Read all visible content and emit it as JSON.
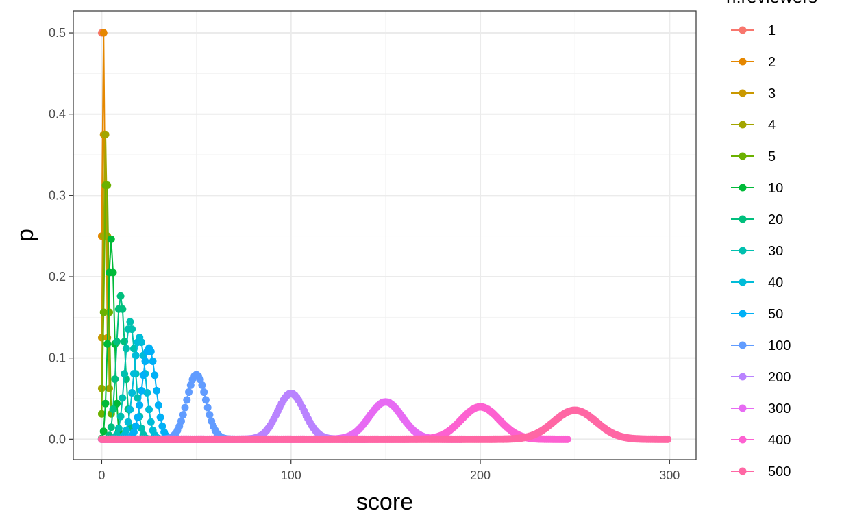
{
  "chart_data": {
    "type": "line",
    "title": "",
    "xlabel": "score",
    "ylabel": "p",
    "xlim": [
      -15,
      314
    ],
    "ylim": [
      -0.025,
      0.527
    ],
    "x_ticks": [
      0,
      100,
      200,
      300
    ],
    "x_tick_labels": [
      "0",
      "100",
      "200",
      "300"
    ],
    "y_ticks": [
      0.0,
      0.1,
      0.2,
      0.3,
      0.4,
      0.5
    ],
    "y_tick_labels": [
      "0.0",
      "0.1",
      "0.2",
      "0.3",
      "0.4",
      "0.5"
    ],
    "grid": true,
    "legend_position": "right",
    "legend_title": "n.reviewers",
    "series": [
      {
        "name": "1",
        "color": "#F8766D",
        "n": 1,
        "cap": 1,
        "label_x": 1
      },
      {
        "name": "2",
        "color": "#E58700",
        "n": 2,
        "cap": 2,
        "label_x": 2
      },
      {
        "name": "3",
        "color": "#C99800",
        "n": 3,
        "cap": 3,
        "label_x": 3
      },
      {
        "name": "4",
        "color": "#A3A500",
        "n": 4,
        "cap": 4,
        "label_x": 4
      },
      {
        "name": "5",
        "color": "#6BB100",
        "n": 5,
        "cap": 5,
        "label_x": 5
      },
      {
        "name": "10",
        "color": "#00BA38",
        "n": 10,
        "cap": 10,
        "label_x": 10
      },
      {
        "name": "20",
        "color": "#00BF7D",
        "n": 20,
        "cap": 20,
        "label_x": 20
      },
      {
        "name": "30",
        "color": "#00C0AF",
        "n": 30,
        "cap": 30,
        "label_x": 30
      },
      {
        "name": "40",
        "color": "#00BCD8",
        "n": 40,
        "cap": 40,
        "label_x": 40
      },
      {
        "name": "50",
        "color": "#00B0F6",
        "n": 50,
        "cap": 42,
        "label_x": 50
      },
      {
        "name": "100",
        "color": "#619CFF",
        "n": 100,
        "cap": 70,
        "label_x": 100
      },
      {
        "name": "200",
        "color": "#B983FF",
        "n": 200,
        "cap": 140,
        "label_x": 200
      },
      {
        "name": "300",
        "color": "#E76BF3",
        "n": 300,
        "cap": 190,
        "label_x": 300
      },
      {
        "name": "400",
        "color": "#FD61D1",
        "n": 400,
        "cap": 246,
        "label_x": 400
      },
      {
        "name": "500",
        "color": "#FF67A4",
        "n": 500,
        "cap": 299,
        "label_x": 500
      }
    ],
    "distribution": "binomial(n, 0.5) over score 0..n, drawn for score <= cap"
  }
}
